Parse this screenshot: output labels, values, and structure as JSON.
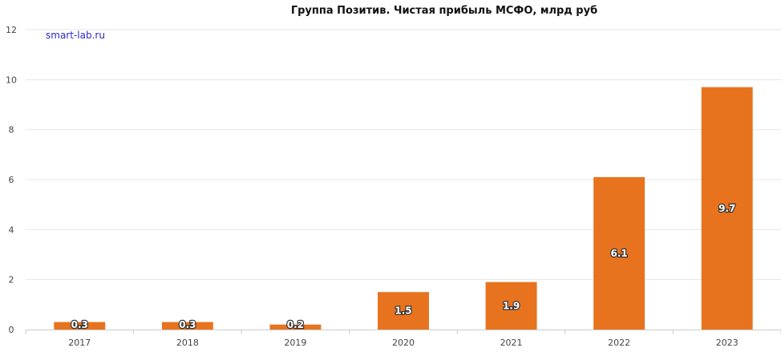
{
  "chart_data": {
    "type": "bar",
    "title": "Группа Позитив. Чистая прибыль МСФО, млрд руб",
    "watermark": "smart-lab.ru",
    "xlabel": "",
    "ylabel": "",
    "categories": [
      "2017",
      "2018",
      "2019",
      "2020",
      "2021",
      "2022",
      "2023"
    ],
    "values": [
      0.3,
      0.3,
      0.2,
      1.5,
      1.9,
      6.1,
      9.7
    ],
    "labels": [
      "0.3",
      "0.3",
      "0.2",
      "1.5",
      "1.9",
      "6.1",
      "9.7"
    ],
    "ylim": [
      0,
      12
    ],
    "yticks": [
      "0",
      "2",
      "4",
      "6",
      "8",
      "10",
      "12"
    ],
    "grid": true,
    "legend": "none",
    "bar_color": "#e8731e"
  }
}
